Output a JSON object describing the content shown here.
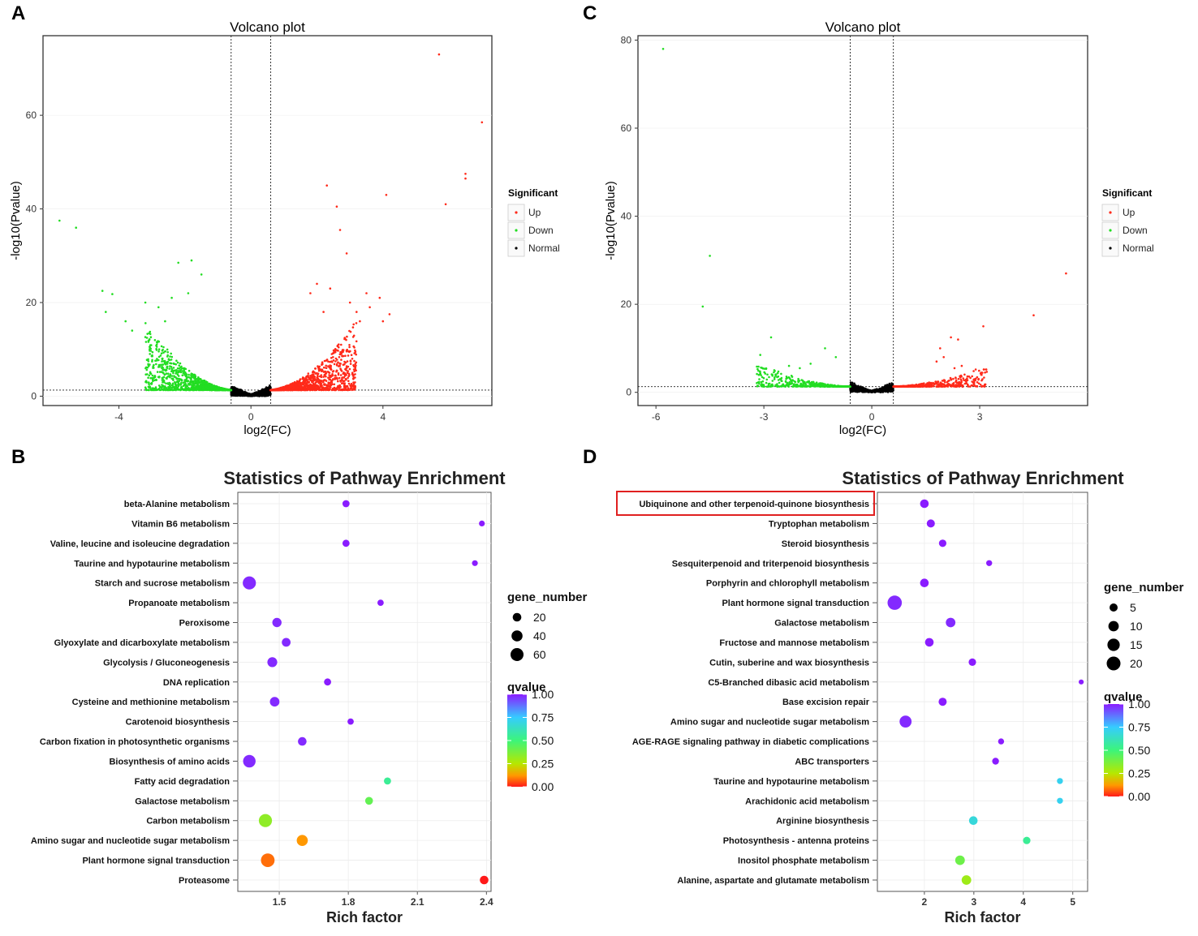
{
  "colors": {
    "up": "#ff2a1a",
    "down": "#22dd22",
    "normal": "#000000",
    "highlight": "#e02020"
  },
  "chart_data": [
    {
      "panel": "A",
      "type": "scatter",
      "title": "Volcano plot",
      "xlabel": "log2(FC)",
      "ylabel": "-log10(Pvalue)",
      "xlim": [
        -6.3,
        7.3
      ],
      "ylim": [
        -2,
        77
      ],
      "xticks": [
        -4,
        0,
        4
      ],
      "yticks": [
        0,
        20,
        40,
        60
      ],
      "fc_cutoff": 0.6,
      "p_line": 1.3,
      "legend": {
        "title": "Significant",
        "items": [
          "Up",
          "Down",
          "Normal"
        ]
      },
      "cloud": {
        "up_count": 1400,
        "down_count": 1300,
        "normal_count": 1500,
        "max_up_y": 12,
        "max_down_y": 12
      },
      "outliers_up": [
        [
          5.7,
          73
        ],
        [
          7.0,
          58.5
        ],
        [
          6.5,
          47.5
        ],
        [
          6.5,
          46.5
        ],
        [
          5.9,
          41
        ],
        [
          2.3,
          45
        ],
        [
          4.1,
          43
        ],
        [
          2.6,
          40.5
        ],
        [
          2.7,
          35.5
        ],
        [
          2.9,
          30.5
        ],
        [
          3.5,
          22
        ],
        [
          3.0,
          20
        ],
        [
          3.2,
          18
        ],
        [
          3.6,
          19
        ],
        [
          4.2,
          17.5
        ],
        [
          2.0,
          24
        ],
        [
          2.4,
          23
        ],
        [
          3.9,
          21
        ],
        [
          3.3,
          16
        ],
        [
          1.8,
          22
        ],
        [
          2.2,
          18
        ],
        [
          4.0,
          16
        ]
      ],
      "outliers_down": [
        [
          -5.8,
          37.5
        ],
        [
          -5.3,
          36
        ],
        [
          -2.2,
          28.5
        ],
        [
          -1.8,
          29
        ],
        [
          -4.5,
          22.5
        ],
        [
          -4.2,
          21.8
        ],
        [
          -4.4,
          18
        ],
        [
          -1.5,
          26
        ],
        [
          -3.8,
          16
        ],
        [
          -3.2,
          20
        ],
        [
          -2.8,
          19
        ],
        [
          -2.4,
          21
        ],
        [
          -3.6,
          14
        ],
        [
          -1.9,
          22
        ],
        [
          -2.6,
          16
        ]
      ]
    },
    {
      "panel": "C",
      "type": "scatter",
      "title": "Volcano plot",
      "xlabel": "log2(FC)",
      "ylabel": "-log10(Pvalue)",
      "xlim": [
        -6.5,
        6.0
      ],
      "ylim": [
        -3,
        81
      ],
      "xticks": [
        -6,
        -3,
        0,
        3
      ],
      "yticks": [
        0,
        20,
        40,
        60,
        80
      ],
      "fc_cutoff": 0.6,
      "p_line": 1.3,
      "legend": {
        "title": "Significant",
        "items": [
          "Up",
          "Down",
          "Normal"
        ]
      },
      "cloud": {
        "up_count": 500,
        "down_count": 500,
        "normal_count": 700,
        "max_up_y": 4,
        "max_down_y": 4.5
      },
      "outliers_up": [
        [
          5.4,
          27
        ],
        [
          4.5,
          17.5
        ],
        [
          3.1,
          15
        ],
        [
          2.2,
          12.5
        ],
        [
          2.4,
          12
        ],
        [
          1.9,
          10
        ],
        [
          2.0,
          8
        ],
        [
          2.5,
          6
        ],
        [
          2.3,
          5.5
        ],
        [
          1.8,
          7
        ]
      ],
      "outliers_down": [
        [
          -5.8,
          78
        ],
        [
          -4.5,
          31
        ],
        [
          -4.7,
          19.5
        ],
        [
          -3.1,
          8.5
        ],
        [
          -2.8,
          12.5
        ],
        [
          -1.3,
          10
        ],
        [
          -1.0,
          8
        ],
        [
          -2.3,
          6
        ],
        [
          -2.0,
          5.5
        ],
        [
          -1.7,
          6.5
        ]
      ]
    },
    {
      "panel": "B",
      "type": "scatter",
      "title": "Statistics of Pathway Enrichment",
      "xlabel": "Rich factor",
      "xlim": [
        1.32,
        2.42
      ],
      "xticks": [
        1.5,
        1.8,
        2.1,
        2.4
      ],
      "size_legend": {
        "title": "gene_number",
        "values": [
          20,
          40,
          60
        ]
      },
      "qvalue_legend": {
        "title": "qvalue",
        "ticks": [
          "1.00",
          "0.75",
          "0.50",
          "0.25",
          "0.00"
        ]
      },
      "pathways": [
        {
          "name": "beta-Alanine metabolism",
          "rich": 1.79,
          "genes": 12,
          "q": 1.0
        },
        {
          "name": "Vitamin B6 metabolism",
          "rich": 2.38,
          "genes": 6,
          "q": 1.0
        },
        {
          "name": "Valine, leucine and isoleucine degradation",
          "rich": 1.79,
          "genes": 12,
          "q": 1.0
        },
        {
          "name": "Taurine and hypotaurine metabolism",
          "rich": 2.35,
          "genes": 6,
          "q": 1.0
        },
        {
          "name": "Starch and sucrose metabolism",
          "rich": 1.37,
          "genes": 62,
          "q": 0.98
        },
        {
          "name": "Propanoate metabolism",
          "rich": 1.94,
          "genes": 8,
          "q": 1.0
        },
        {
          "name": "Peroxisome",
          "rich": 1.49,
          "genes": 25,
          "q": 0.98
        },
        {
          "name": "Glyoxylate and dicarboxylate metabolism",
          "rich": 1.53,
          "genes": 22,
          "q": 0.98
        },
        {
          "name": "Glycolysis / Gluconeogenesis",
          "rich": 1.47,
          "genes": 30,
          "q": 0.98
        },
        {
          "name": "DNA replication",
          "rich": 1.71,
          "genes": 12,
          "q": 1.0
        },
        {
          "name": "Cysteine and methionine metabolism",
          "rich": 1.48,
          "genes": 28,
          "q": 0.98
        },
        {
          "name": "Carotenoid biosynthesis",
          "rich": 1.81,
          "genes": 8,
          "q": 1.0
        },
        {
          "name": "Carbon fixation in photosynthetic organisms",
          "rich": 1.6,
          "genes": 20,
          "q": 0.98
        },
        {
          "name": "Biosynthesis of amino acids",
          "rich": 1.37,
          "genes": 55,
          "q": 0.98
        },
        {
          "name": "Fatty acid degradation",
          "rich": 1.97,
          "genes": 12,
          "q": 0.55
        },
        {
          "name": "Galactose metabolism",
          "rich": 1.89,
          "genes": 15,
          "q": 0.42
        },
        {
          "name": "Carbon metabolism",
          "rich": 1.44,
          "genes": 62,
          "q": 0.33
        },
        {
          "name": "Amino sugar and nucleotide sugar metabolism",
          "rich": 1.6,
          "genes": 40,
          "q": 0.12
        },
        {
          "name": "Plant hormone signal transduction",
          "rich": 1.45,
          "genes": 68,
          "q": 0.08
        },
        {
          "name": "Proteasome",
          "rich": 2.39,
          "genes": 20,
          "q": 0.0
        }
      ]
    },
    {
      "panel": "D",
      "type": "scatter",
      "title": "Statistics of Pathway Enrichment",
      "xlabel": "Rich factor",
      "xlim": [
        1.05,
        5.3
      ],
      "xticks": [
        2,
        3,
        4,
        5
      ],
      "size_legend": {
        "title": "gene_number",
        "values": [
          5,
          10,
          15,
          20
        ]
      },
      "qvalue_legend": {
        "title": "qvalue",
        "ticks": [
          "1.00",
          "0.75",
          "0.50",
          "0.25",
          "0.00"
        ]
      },
      "highlight_label": "Ubiquinone and other terpenoid-quinone biosynthesis",
      "pathways": [
        {
          "name": "Ubiquinone and other terpenoid-quinone biosynthesis",
          "rich": 2.0,
          "genes": 6,
          "q": 1.0
        },
        {
          "name": "Tryptophan metabolism",
          "rich": 2.13,
          "genes": 5,
          "q": 1.0
        },
        {
          "name": "Steroid biosynthesis",
          "rich": 2.37,
          "genes": 4,
          "q": 1.0
        },
        {
          "name": "Sesquiterpenoid and triterpenoid biosynthesis",
          "rich": 3.31,
          "genes": 2,
          "q": 1.0
        },
        {
          "name": "Porphyrin and chlorophyll metabolism",
          "rich": 2.0,
          "genes": 6,
          "q": 1.0
        },
        {
          "name": "Plant hormone signal transduction",
          "rich": 1.4,
          "genes": 22,
          "q": 0.98
        },
        {
          "name": "Galactose metabolism",
          "rich": 2.53,
          "genes": 8,
          "q": 0.98
        },
        {
          "name": "Fructose and mannose metabolism",
          "rich": 2.1,
          "genes": 6,
          "q": 1.0
        },
        {
          "name": "Cutin, suberine and wax biosynthesis",
          "rich": 2.97,
          "genes": 4,
          "q": 1.0
        },
        {
          "name": "C5-Branched dibasic acid metabolism",
          "rich": 5.17,
          "genes": 1,
          "q": 1.0
        },
        {
          "name": "Base excision repair",
          "rich": 2.37,
          "genes": 5,
          "q": 1.0
        },
        {
          "name": "Amino sugar and nucleotide sugar metabolism",
          "rich": 1.62,
          "genes": 14,
          "q": 0.98
        },
        {
          "name": "AGE-RAGE signaling pathway in diabetic complications",
          "rich": 3.55,
          "genes": 2,
          "q": 1.0
        },
        {
          "name": "ABC transporters",
          "rich": 3.44,
          "genes": 3,
          "q": 1.0
        },
        {
          "name": "Taurine and hypotaurine metabolism",
          "rich": 4.74,
          "genes": 2,
          "q": 0.72
        },
        {
          "name": "Arachidonic acid metabolism",
          "rich": 4.74,
          "genes": 2,
          "q": 0.72
        },
        {
          "name": "Arginine biosynthesis",
          "rich": 2.99,
          "genes": 6,
          "q": 0.68
        },
        {
          "name": "Photosynthesis - antenna proteins",
          "rich": 4.07,
          "genes": 4,
          "q": 0.55
        },
        {
          "name": "Inositol phosphate metabolism",
          "rich": 2.72,
          "genes": 8,
          "q": 0.4
        },
        {
          "name": "Alanine, aspartate and glutamate metabolism",
          "rich": 2.85,
          "genes": 8,
          "q": 0.3
        }
      ]
    }
  ]
}
